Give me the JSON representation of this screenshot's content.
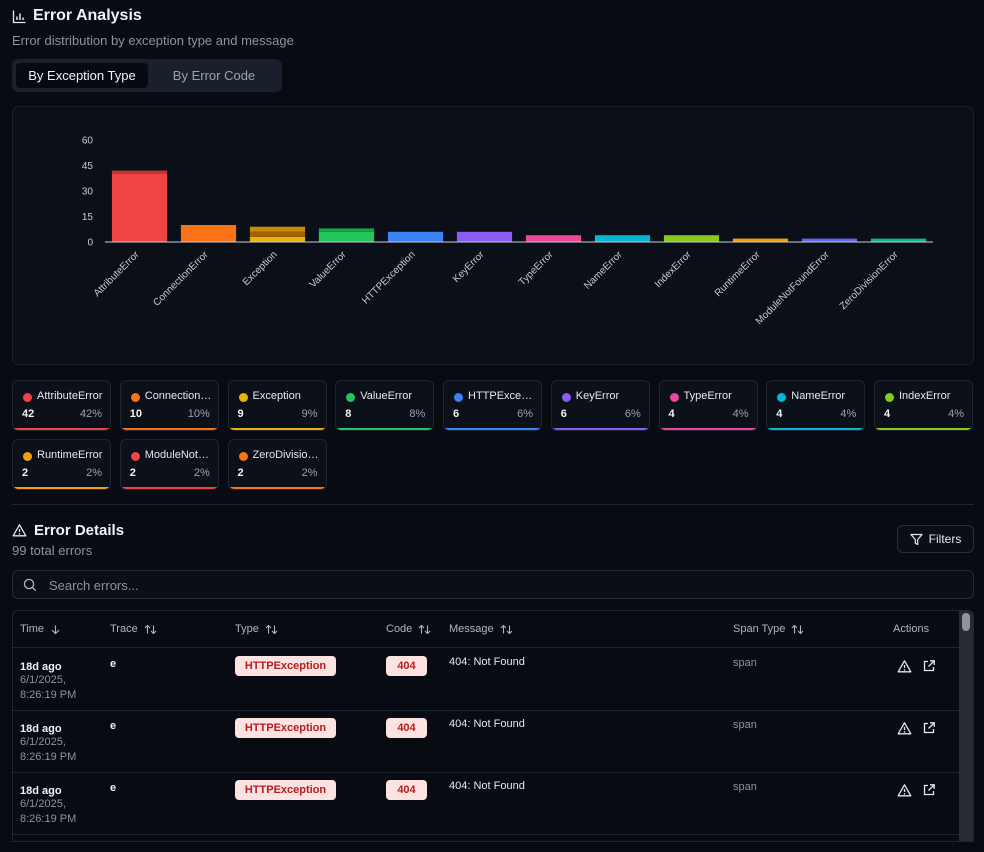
{
  "header": {
    "title": "Error Analysis",
    "subtitle": "Error distribution by exception type and message"
  },
  "tabs": [
    {
      "label": "By Exception Type",
      "active": true
    },
    {
      "label": "By Error Code",
      "active": false
    }
  ],
  "chart_data": {
    "type": "bar",
    "stacked": true,
    "categories": [
      "AttributeError",
      "ConnectionError",
      "Exception",
      "ValueError",
      "HTTPException",
      "KeyError",
      "TypeError",
      "NameError",
      "IndexError",
      "RuntimeError",
      "ModuleNotFoundError",
      "ZeroDivisionError"
    ],
    "stacks": [
      [
        {
          "value": 40,
          "color": "#ef4444"
        },
        {
          "value": 2,
          "color": "#c53434"
        }
      ],
      [
        {
          "value": 10,
          "color": "#f97316"
        }
      ],
      [
        {
          "value": 3,
          "color": "#eab308"
        },
        {
          "value": 3,
          "color": "#a16207"
        },
        {
          "value": 3,
          "color": "#ca8a04"
        }
      ],
      [
        {
          "value": 6,
          "color": "#22c55e"
        },
        {
          "value": 2,
          "color": "#16a34a"
        }
      ],
      [
        {
          "value": 6,
          "color": "#3b82f6"
        }
      ],
      [
        {
          "value": 6,
          "color": "#8b5cf6"
        }
      ],
      [
        {
          "value": 4,
          "color": "#ec4899"
        }
      ],
      [
        {
          "value": 4,
          "color": "#06b6d4"
        }
      ],
      [
        {
          "value": 4,
          "color": "#84cc16"
        }
      ],
      [
        {
          "value": 2,
          "color": "#f59e0b"
        }
      ],
      [
        {
          "value": 2,
          "color": "#6366f1"
        }
      ],
      [
        {
          "value": 2,
          "color": "#10b981"
        }
      ]
    ],
    "yticks": [
      0,
      15,
      30,
      45,
      60
    ],
    "ylim": [
      0,
      60
    ],
    "grid": false,
    "title": "",
    "xlabel": "",
    "ylabel": ""
  },
  "legend": [
    {
      "name": "AttributeError",
      "count": "42",
      "pct": "42%",
      "color": "#ef4444"
    },
    {
      "name": "ConnectionError",
      "count": "10",
      "pct": "10%",
      "color": "#f97316"
    },
    {
      "name": "Exception",
      "count": "9",
      "pct": "9%",
      "color": "#eab308"
    },
    {
      "name": "ValueError",
      "count": "8",
      "pct": "8%",
      "color": "#22c55e"
    },
    {
      "name": "HTTPException",
      "count": "6",
      "pct": "6%",
      "color": "#3b82f6"
    },
    {
      "name": "KeyError",
      "count": "6",
      "pct": "6%",
      "color": "#8b5cf6"
    },
    {
      "name": "TypeError",
      "count": "4",
      "pct": "4%",
      "color": "#ec4899"
    },
    {
      "name": "NameError",
      "count": "4",
      "pct": "4%",
      "color": "#06b6d4"
    },
    {
      "name": "IndexError",
      "count": "4",
      "pct": "4%",
      "color": "#84cc16"
    },
    {
      "name": "RuntimeError",
      "count": "2",
      "pct": "2%",
      "color": "#f59e0b"
    },
    {
      "name": "ModuleNotFoundError",
      "count": "2",
      "pct": "2%",
      "color": "#ef4444"
    },
    {
      "name": "ZeroDivisionError",
      "count": "2",
      "pct": "2%",
      "color": "#f97316"
    }
  ],
  "details": {
    "title": "Error Details",
    "count": "99 total errors",
    "filters_label": "Filters",
    "search_placeholder": "Search errors..."
  },
  "table": {
    "columns": [
      {
        "key": "time",
        "label": "Time",
        "sort": "desc"
      },
      {
        "key": "trace",
        "label": "Trace",
        "sort": "both"
      },
      {
        "key": "type",
        "label": "Type",
        "sort": "both"
      },
      {
        "key": "code",
        "label": "Code",
        "sort": "both"
      },
      {
        "key": "message",
        "label": "Message",
        "sort": "both"
      },
      {
        "key": "span_type",
        "label": "Span Type",
        "sort": "both"
      },
      {
        "key": "actions",
        "label": "Actions",
        "sort": "none"
      }
    ],
    "rows": [
      {
        "ago": "18d ago",
        "date": "6/1/2025,",
        "clock": "8:26:19 PM",
        "trace": "e",
        "type": "HTTPException",
        "code": "404",
        "message": "404: Not Found",
        "span_type": "span"
      },
      {
        "ago": "18d ago",
        "date": "6/1/2025,",
        "clock": "8:26:19 PM",
        "trace": "e",
        "type": "HTTPException",
        "code": "404",
        "message": "404: Not Found",
        "span_type": "span"
      },
      {
        "ago": "18d ago",
        "date": "6/1/2025,",
        "clock": "8:26:19 PM",
        "trace": "e",
        "type": "HTTPException",
        "code": "404",
        "message": "404: Not Found",
        "span_type": "span"
      }
    ]
  }
}
